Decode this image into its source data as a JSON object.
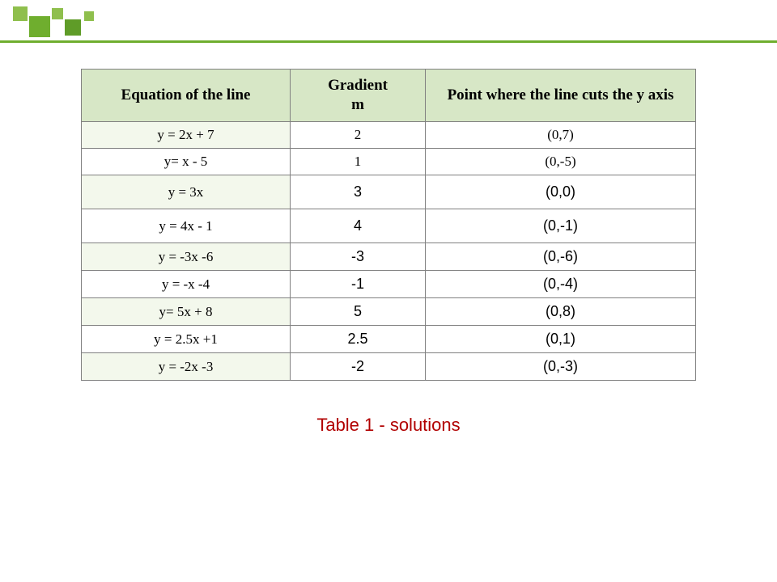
{
  "table": {
    "headers": {
      "equation": "Equation of the line",
      "gradient": "Gradient\nm",
      "point": "Point where the line cuts the y axis"
    },
    "rows": [
      {
        "eq": "y = 2x + 7",
        "grad": "2",
        "pt": "(0,7)",
        "sans": false
      },
      {
        "eq": "y= x - 5",
        "grad": "1",
        "pt": "(0,-5)",
        "sans": false
      },
      {
        "eq": "y = 3x",
        "grad": "3",
        "pt": "(0,0)",
        "sans": true
      },
      {
        "eq": "y = 4x - 1",
        "grad": "4",
        "pt": "(0,-1)",
        "sans": true
      },
      {
        "eq": "y = -3x -6",
        "grad": "-3",
        "pt": "(0,-6)",
        "sans": true
      },
      {
        "eq": "y = -x -4",
        "grad": "-1",
        "pt": "(0,-4)",
        "sans": true
      },
      {
        "eq": "y= 5x + 8",
        "grad": "5",
        "pt": "(0,8)",
        "sans": true
      },
      {
        "eq": "y = 2.5x +1",
        "grad": "2.5",
        "pt": "(0,1)",
        "sans": true
      },
      {
        "eq": "y = -2x -3",
        "grad": "-2",
        "pt": "(0,-3)",
        "sans": true
      }
    ],
    "caption": "Table 1 - solutions",
    "colors": {
      "header_bg": "#d7e7c6",
      "eq_bg": "#f3f8ec",
      "border": "#808080",
      "caption": "#b10000",
      "deco_green_light": "#8fbf4d",
      "deco_green_dark": "#6fae2e"
    },
    "col_widths_pct": [
      34,
      22,
      44
    ]
  }
}
